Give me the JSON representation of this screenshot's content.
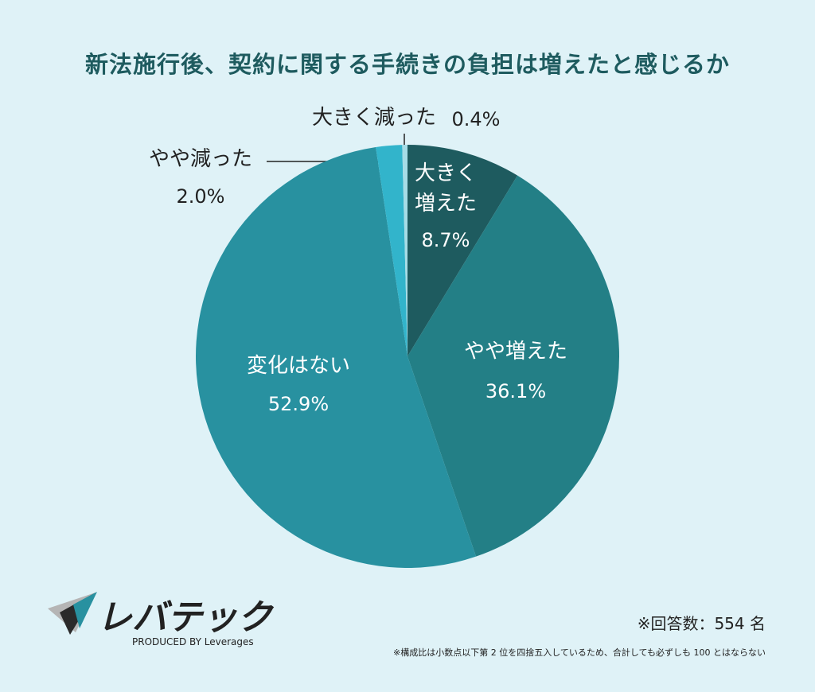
{
  "chart_data": {
    "type": "pie",
    "title": "新法施行後、契約に関する手続きの負担は増えたと感じるか",
    "categories": [
      "大きく増えた",
      "やや増えた",
      "変化はない",
      "やや減った",
      "大きく減った"
    ],
    "values": [
      8.7,
      36.1,
      52.9,
      2.0,
      0.4
    ],
    "value_labels": [
      "8.7%",
      "36.1%",
      "52.9%",
      "2.0%",
      "0.4%"
    ],
    "colors": [
      "#1e5b5f",
      "#237f86",
      "#2891a0",
      "#32b4cb",
      "#a6dce6"
    ],
    "annotations": [
      "※回答数：554 名",
      "※構成比は小数点以下第 2 位を四捨五入しているため、合計しても必ずしも 100 とはならない"
    ]
  },
  "logo": {
    "name": "レバテック",
    "tagline": "PRODUCED BY Leverages"
  }
}
